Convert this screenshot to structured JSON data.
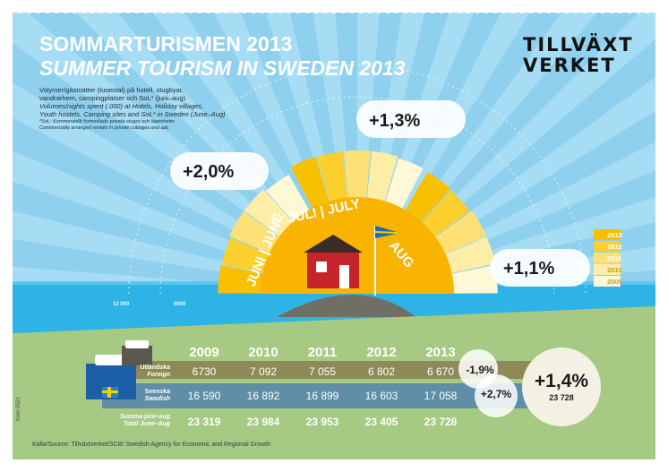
{
  "title_sv": "SOMMARTURISMEN 2013",
  "title_en": "SUMMER TOURISM IN SWEDEN 2013",
  "subtitle_sv": [
    "Volymer/gästnätter (tusental) på hotell, stugbyar,",
    "vandrarhem, campingplatser och SoL* (juni–aug)"
  ],
  "subtitle_en": [
    "Volumes/nights spent (.000) at Hotels, Holiday villages,",
    "Youth hostels, Camping sites and SoL* in Sweden (June–Aug)"
  ],
  "footnote": [
    "*SoL: Kommersiellt förmedlade privata stugor och lägenheter",
    "Commercially arranged rentals in private cottages and apt."
  ],
  "logo": [
    "TILLVÄXT",
    "VERKET"
  ],
  "months": [
    "JUNI | JUNE",
    "JULI | JULY",
    "AUG"
  ],
  "axis_ticks": [
    "12 000",
    "6000"
  ],
  "code": "Kom 0521",
  "source": "Källa/Source: Tillväxtverket/SCB/ Swedish Agency for Economic and Regional Growth",
  "colors": {
    "sky": "#8fd0ee",
    "sea": "#2db3e6",
    "grass": "#a6c983",
    "sun": "#f8b400",
    "foreign_row": "#8e8a58",
    "swedish_row": "#5f8ea6",
    "total_row": "#8ab86a"
  },
  "chart_data": {
    "type": "bar",
    "title": "SOMMARTURISMEN 2013 / SUMMER TOURISM IN SWEDEN 2013",
    "categories": [
      "JUNI | JUNE",
      "JULI | JULY",
      "AUG"
    ],
    "series": [
      {
        "name": "2009",
        "values": [
          5400,
          10600,
          5700
        ]
      },
      {
        "name": "2010",
        "values": [
          5700,
          10900,
          5800
        ]
      },
      {
        "name": "2011",
        "values": [
          5700,
          10900,
          5800
        ]
      },
      {
        "name": "2012",
        "values": [
          5500,
          10800,
          5600
        ]
      },
      {
        "name": "2013",
        "values": [
          5600,
          10900,
          5700
        ]
      }
    ],
    "changes": [
      "+2,0%",
      "+1,3%",
      "+1,1%"
    ],
    "radial_ticks": [
      "12 000",
      "6000"
    ],
    "legend": [
      "2013",
      "2012",
      "2011",
      "2010",
      "2009"
    ],
    "legend_colors": [
      "#f8c000",
      "#fbcf2e",
      "#fde176",
      "#fdeda7",
      "#fff8d6"
    ],
    "table": {
      "years": [
        "2009",
        "2010",
        "2011",
        "2012",
        "2013"
      ],
      "rows": [
        {
          "label_sv": "Utländska",
          "label_en": "Foreign",
          "values": [
            "6730",
            "7 092",
            "7 055",
            "6 802",
            "6 670"
          ],
          "change": "-1,9%"
        },
        {
          "label_sv": "Svenska",
          "label_en": "Swedish",
          "values": [
            "16 590",
            "16 892",
            "16 899",
            "16 603",
            "17 058"
          ],
          "change": "+2,7%"
        },
        {
          "label_sv": "Summa juni–aug",
          "label_en": "Total June–Aug",
          "values": [
            "23 319",
            "23 984",
            "23 953",
            "23 405",
            "23 728"
          ],
          "change": "+1,4%",
          "change_total": "23 728"
        }
      ]
    }
  }
}
